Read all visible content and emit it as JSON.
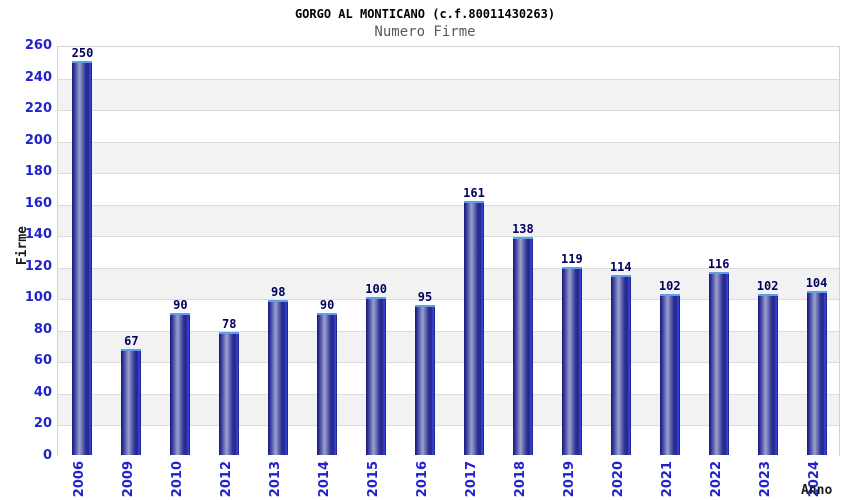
{
  "chart_data": {
    "type": "bar",
    "title": "GORGO AL MONTICANO (c.f.80011430263)",
    "subtitle": "Numero Firme",
    "xlabel": "Anno",
    "ylabel": "Firme",
    "categories": [
      "2006",
      "2009",
      "2010",
      "2012",
      "2013",
      "2014",
      "2015",
      "2016",
      "2017",
      "2018",
      "2019",
      "2020",
      "2021",
      "2022",
      "2023",
      "2024"
    ],
    "values": [
      250,
      67,
      90,
      78,
      98,
      90,
      100,
      95,
      161,
      138,
      119,
      114,
      102,
      116,
      102,
      104
    ],
    "ylim": [
      0,
      260
    ],
    "ytick_step": 20,
    "grid": true,
    "legend": "none",
    "band_fill": "alternating",
    "colors": {
      "bar_dark": "#181873",
      "bar_light": "#9aa2cc",
      "bar_highlight": "#3a4ae8",
      "bar_top_border": "#5da0e8",
      "value_label": "#00005e",
      "tick_label": "#2222cc",
      "title": "#000000",
      "subtitle": "#5a5a5a",
      "axis_text": "#1a1a1a",
      "stripe_gray": "#f2f2f2",
      "stripe_white": "#ffffff",
      "gridline": "#dcdcdc",
      "plot_border": "#d2d2d2",
      "background": "#ffffff"
    }
  }
}
